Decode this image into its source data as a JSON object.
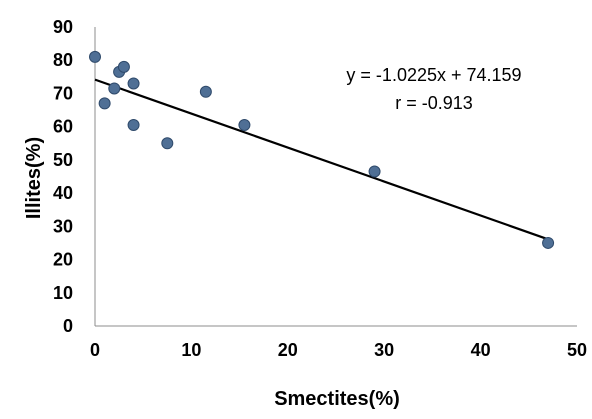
{
  "chart_data": {
    "type": "scatter",
    "xlabel": "Smectites(%)",
    "ylabel": "Illites(%)",
    "xlim": [
      0,
      50
    ],
    "ylim": [
      0,
      90
    ],
    "x_ticks": [
      0,
      10,
      20,
      30,
      40,
      50
    ],
    "y_ticks": [
      0,
      10,
      20,
      30,
      40,
      50,
      60,
      70,
      80,
      90
    ],
    "grid": false,
    "legend": "none",
    "points": [
      {
        "x": 0.0,
        "y": 81.0
      },
      {
        "x": 1.0,
        "y": 67.0
      },
      {
        "x": 2.0,
        "y": 71.5
      },
      {
        "x": 2.5,
        "y": 76.5
      },
      {
        "x": 3.0,
        "y": 78.0
      },
      {
        "x": 4.0,
        "y": 73.0
      },
      {
        "x": 4.0,
        "y": 60.5
      },
      {
        "x": 7.5,
        "y": 55.0
      },
      {
        "x": 11.5,
        "y": 70.5
      },
      {
        "x": 15.5,
        "y": 60.5
      },
      {
        "x": 29.0,
        "y": 46.5
      },
      {
        "x": 47.0,
        "y": 25.0
      }
    ],
    "trendline": {
      "slope": -1.0225,
      "intercept": 74.159,
      "x_range": [
        0,
        47
      ]
    },
    "annotations": {
      "equation": "y = -1.0225x + 74.159",
      "r": "r = -0.913"
    },
    "colors": {
      "marker_fill": "#4f6f95",
      "marker_stroke": "#2f4a6b",
      "line": "#000000",
      "axis": "#8c8c8c"
    }
  }
}
